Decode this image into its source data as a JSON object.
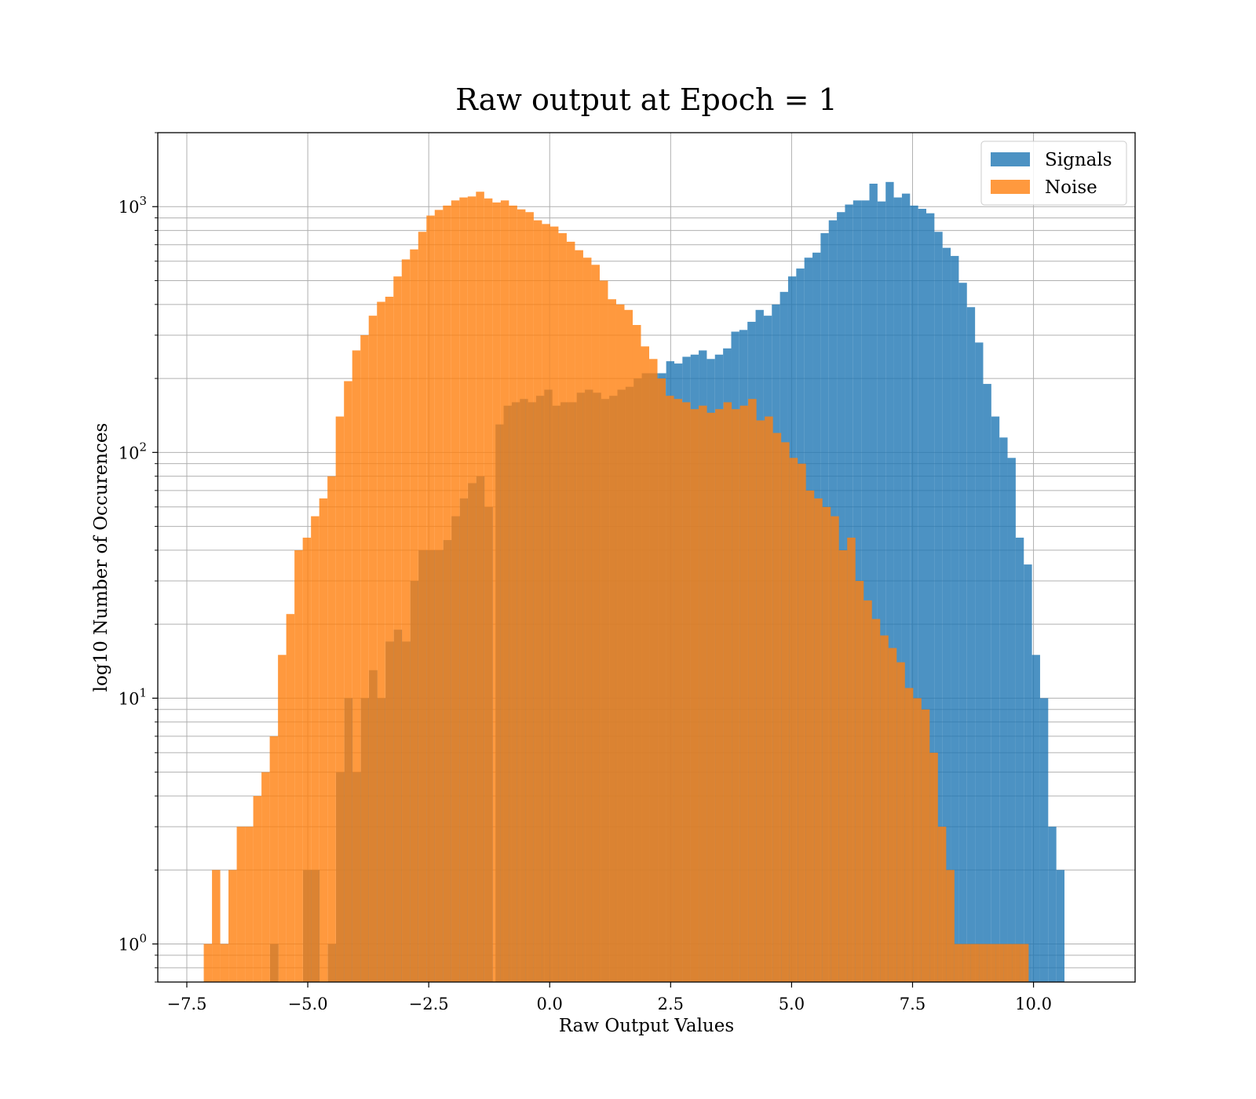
{
  "chart_data": {
    "type": "histogram",
    "title": "Raw output at Epoch = 1",
    "xlabel": "Raw Output Values",
    "ylabel": "log10 Number of Occurences",
    "xlim": [
      -8.1,
      12.1
    ],
    "ylim": [
      0.7,
      2000
    ],
    "yscale": "log",
    "grid": true,
    "legend_position": "upper right",
    "x_ticks": [
      -7.5,
      -5.0,
      -2.5,
      0.0,
      2.5,
      5.0,
      7.5,
      10.0
    ],
    "x_tick_labels": [
      "−7.5",
      "−5.0",
      "−2.5",
      "0.0",
      "2.5",
      "5.0",
      "7.5",
      "10.0"
    ],
    "y_ticks": [
      1,
      10,
      100,
      1000
    ],
    "y_tick_labels": [
      {
        "base": "10",
        "exp": "0"
      },
      {
        "base": "10",
        "exp": "1"
      },
      {
        "base": "10",
        "exp": "2"
      },
      {
        "base": "10",
        "exp": "3"
      }
    ],
    "series": [
      {
        "name": "Signals",
        "color": "#1f77b4",
        "alpha": 0.8,
        "bin_start": -5.78,
        "bin_width": 0.1705,
        "counts": [
          1,
          0,
          0,
          0,
          2,
          2,
          0,
          1,
          5,
          10,
          5,
          10,
          13,
          10,
          17,
          19,
          17,
          30,
          40,
          40,
          40,
          44,
          55,
          65,
          75,
          80,
          60,
          75,
          100,
          115,
          95,
          110,
          120,
          110,
          115,
          135,
          145,
          170,
          180,
          180,
          185,
          145,
          175,
          190,
          145,
          175,
          155,
          165,
          185,
          145,
          130,
          160,
          200,
          120,
          50,
          40,
          30,
          21,
          27,
          21,
          30,
          14,
          10,
          8,
          10,
          9,
          7,
          8,
          5,
          10,
          1,
          3,
          0,
          1,
          3,
          0,
          0,
          1,
          0,
          0,
          0
        ],
        "tail_start": -1.12,
        "tail_width": 0.168,
        "tail_counts": [
          130,
          155,
          160,
          165,
          160,
          170,
          180,
          155,
          160,
          160,
          175,
          180,
          175,
          165,
          170,
          180,
          185,
          200,
          210,
          210,
          210,
          235,
          230,
          245,
          250,
          260,
          240,
          250,
          265,
          310,
          315,
          340,
          380,
          360,
          400,
          450,
          520,
          560,
          620,
          650,
          780,
          880,
          950,
          1020,
          1060,
          1060,
          1240,
          1050,
          1260,
          1090,
          1130,
          1010,
          980,
          940,
          790,
          680,
          630,
          490,
          390,
          280,
          190,
          140,
          115,
          95,
          45,
          35,
          15,
          10,
          3,
          2,
          0,
          0,
          0
        ],
        "note_hidden": false
      },
      {
        "name": "Noise",
        "color": "#ff7f0e",
        "alpha": 0.8,
        "bin_start": -7.15,
        "bin_width": 0.1705,
        "counts": [
          1,
          2,
          1,
          2,
          3,
          3,
          4,
          5,
          7,
          15,
          22,
          40,
          45,
          55,
          65,
          80,
          140,
          195,
          260,
          300,
          360,
          410,
          430,
          520,
          610,
          670,
          790,
          920,
          970,
          1010,
          1060,
          1090,
          1100,
          1150,
          1080,
          1040,
          1060,
          1010,
          975,
          950,
          880,
          850,
          830,
          780,
          720,
          665,
          620,
          580,
          500,
          420,
          400,
          380,
          330,
          270,
          240,
          200,
          170,
          165,
          160,
          150,
          155,
          145,
          150,
          160,
          150,
          155,
          165,
          135,
          140,
          120,
          110,
          95,
          90,
          70,
          65,
          60,
          55,
          40,
          45,
          30,
          25,
          21,
          18,
          16,
          14,
          11,
          10,
          9,
          6,
          3,
          2,
          1,
          1,
          1,
          1,
          1,
          1,
          1,
          1,
          1,
          0,
          0,
          0,
          0,
          0
        ]
      }
    ],
    "legend": [
      {
        "name": "Signals",
        "color": "#1f77b4"
      },
      {
        "name": "Noise",
        "color": "#ff7f0e"
      }
    ]
  }
}
